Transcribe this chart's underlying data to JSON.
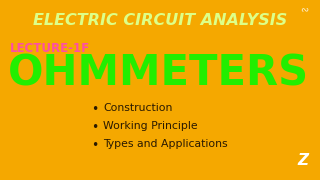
{
  "background_color": "#F5A800",
  "title_text": "ELECTRIC CIRCUIT ANALYSIS",
  "title_color": "#DDFF88",
  "title_fontsize": 11.5,
  "lecture_text": "LECTURE-1F",
  "lecture_color": "#FF4DA6",
  "lecture_fontsize": 8.5,
  "main_text": "OHMMETERS",
  "main_color": "#22EE00",
  "main_fontsize": 30,
  "bullet_items": [
    "Construction",
    "Working Principle",
    "Types and Applications"
  ],
  "bullet_color": "#2a1a00",
  "bullet_fontsize": 7.8,
  "figsize": [
    3.2,
    1.8
  ],
  "dpi": 100
}
